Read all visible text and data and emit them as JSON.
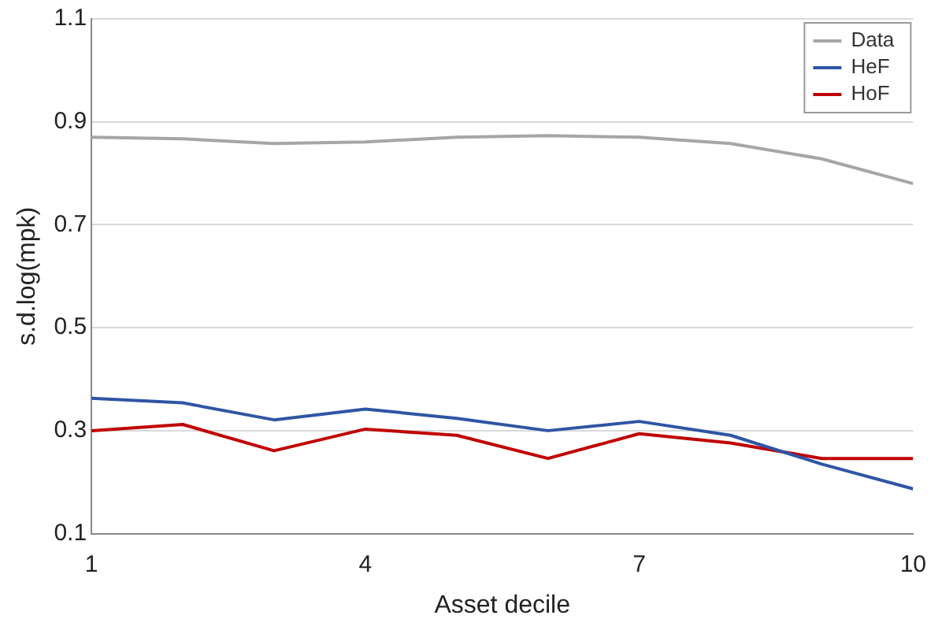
{
  "chart_data": {
    "type": "line",
    "xlabel": "Asset decile",
    "ylabel": "s.d.log(mpk)",
    "x": [
      1,
      2,
      3,
      4,
      5,
      6,
      7,
      8,
      9,
      10
    ],
    "xlim": [
      1,
      10
    ],
    "xticks": [
      1,
      4,
      7,
      10
    ],
    "ylim": [
      0.1,
      1.1
    ],
    "yticks": [
      0.1,
      0.3,
      0.5,
      0.7,
      0.9,
      1.1
    ],
    "grid": "y",
    "legend": "top right",
    "marker": "none",
    "line_style": "solid",
    "series": [
      {
        "name": "Data",
        "color": "#a6a6a6",
        "values": [
          0.87,
          0.867,
          0.858,
          0.861,
          0.87,
          0.873,
          0.87,
          0.858,
          0.828,
          0.78
        ]
      },
      {
        "name": "HeF",
        "color": "#2f55a4",
        "values": [
          0.363,
          0.354,
          0.321,
          0.342,
          0.324,
          0.3,
          0.318,
          0.291,
          0.235,
          0.187
        ]
      },
      {
        "name": "HoF",
        "color": "#c00000",
        "values": [
          0.3,
          0.312,
          0.261,
          0.303,
          0.291,
          0.246,
          0.294,
          0.276,
          0.246,
          0.246
        ]
      }
    ]
  }
}
